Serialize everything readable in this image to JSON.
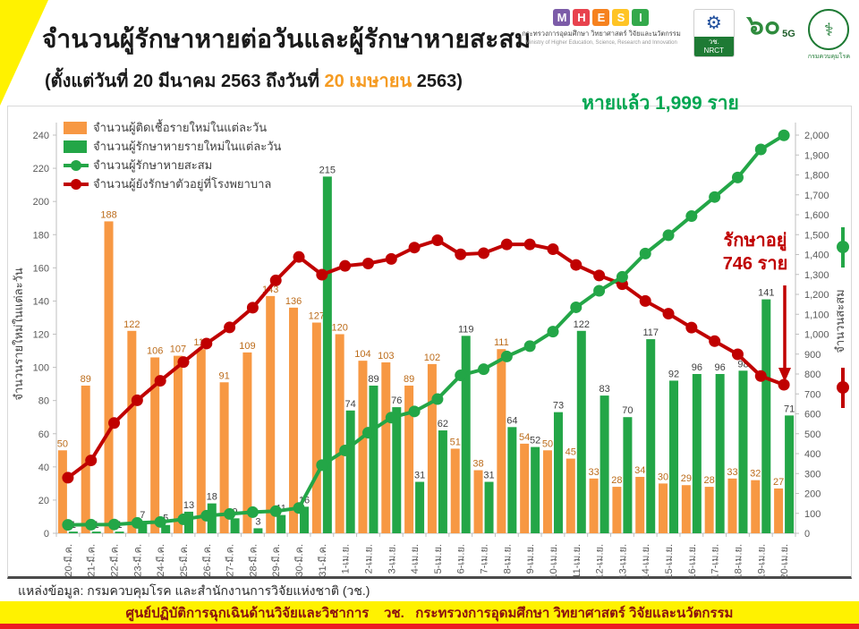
{
  "header": {
    "title": "จำนวนผู้รักษาหายต่อวันและผู้รักษาหายสะสม",
    "subtitle_pre": "(ตั้งแต่วันที่ 20 มีนาคม 2563 ถึงวันที่ ",
    "subtitle_highlight": "20 เมษายน",
    "subtitle_post": " 2563)"
  },
  "logos": {
    "mhesi_letters": [
      "M",
      "H",
      "E",
      "S",
      "I"
    ],
    "mhesi_colors": [
      "#7C5CA8",
      "#E8434E",
      "#F6821F",
      "#FFC425",
      "#34A94B"
    ],
    "mhesi_thai": "กระทรวงการอุดมศึกษา วิทยาศาสตร์ วิจัยและนวัตกรรม",
    "mhesi_eng": "Ministry of Higher Education, Science, Research and Innovation",
    "nrct_emblem_icon": "gear-emblem",
    "nrct_acronym_thai": "วช.",
    "nrct_acronym_en": "NRCT",
    "anniversary_number": "๖๐",
    "anniversary_sub": "5G",
    "ddc_icon": "caduceus",
    "ddc_name": "กรมควบคุมโรค"
  },
  "annotations": {
    "recovered_total": "หายแล้ว 1,999 ราย",
    "in_hospital_line1": "รักษาอยู่",
    "in_hospital_line2": "746 ราย"
  },
  "chart_data": {
    "type": "bar",
    "subtype": "combo-bar-line-dual-axis",
    "title": "จำนวนผู้รักษาหายต่อวันและผู้รักษาหายสะสม",
    "categories": [
      "20-มี.ค.",
      "21-มี.ค.",
      "22-มี.ค.",
      "23-มี.ค.",
      "24-มี.ค.",
      "25-มี.ค.",
      "26-มี.ค.",
      "27-มี.ค.",
      "28-มี.ค.",
      "29-มี.ค.",
      "30-มี.ค.",
      "31-มี.ค.",
      "1-เม.ย.",
      "2-เม.ย.",
      "3-เม.ย.",
      "4-เม.ย.",
      "5-เม.ย.",
      "6-เม.ย.",
      "7-เม.ย.",
      "8-เม.ย.",
      "9-เม.ย.",
      "10-เม.ย.",
      "11-เม.ย.",
      "12-เม.ย.",
      "13-เม.ย.",
      "14-เม.ย.",
      "15-เม.ย.",
      "16-เม.ย.",
      "17-เม.ย.",
      "18-เม.ย.",
      "19-เม.ย.",
      "20-เม.ย."
    ],
    "series": [
      {
        "name": "จำนวนผู้ติดเชื้อรายใหม่ในแต่ละวัน",
        "kind": "bar",
        "axis": "left",
        "color": "#F79843",
        "label_color": "#BC6C1B",
        "values": [
          50,
          89,
          188,
          122,
          106,
          107,
          111,
          91,
          109,
          143,
          136,
          127,
          120,
          104,
          103,
          89,
          102,
          51,
          38,
          111,
          54,
          50,
          45,
          33,
          28,
          34,
          30,
          29,
          28,
          33,
          32,
          27
        ]
      },
      {
        "name": "จำนวนผู้รักษาหายรายใหม่ในแต่ละวัน",
        "kind": "bar",
        "axis": "left",
        "color": "#23A647",
        "label_color": "#3F3F3F",
        "values": [
          1,
          1,
          1,
          7,
          5,
          13,
          18,
          9,
          3,
          11,
          16,
          215,
          74,
          89,
          76,
          31,
          62,
          119,
          31,
          64,
          52,
          73,
          122,
          83,
          70,
          117,
          92,
          96,
          96,
          98,
          141,
          71
        ]
      },
      {
        "name": "จำนวนผู้รักษาหายสะสม",
        "kind": "line",
        "axis": "right",
        "color": "#23A647",
        "values": [
          42,
          43,
          44,
          52,
          57,
          70,
          88,
          97,
          106,
          111,
          127,
          342,
          416,
          505,
          581,
          612,
          674,
          793,
          824,
          888,
          940,
          1013,
          1135,
          1218,
          1288,
          1405,
          1497,
          1593,
          1689,
          1787,
          1928,
          1999
        ]
      },
      {
        "name": "จำนวนผู้ยังรักษาตัวอยู่ที่โรงพยาบาล",
        "kind": "line",
        "axis": "right",
        "color": "#C00000",
        "values": [
          279,
          366,
          554,
          668,
          766,
          860,
          953,
          1034,
          1133,
          1270,
          1388,
          1299,
          1343,
          1355,
          1378,
          1435,
          1472,
          1401,
          1407,
          1451,
          1451,
          1427,
          1348,
          1295,
          1251,
          1167,
          1103,
          1033,
          965,
          899,
          790,
          746
        ]
      }
    ],
    "left_axis": {
      "label": "จำนวนรายใหม่ในแต่ละวัน",
      "min": 0,
      "max": 240,
      "step": 20
    },
    "right_axis": {
      "label": "จำนวนสะสม",
      "min": 0,
      "max": 2000,
      "step": 100
    },
    "legend_position": "top-left",
    "grid": false
  },
  "source": {
    "text": "แหล่งข้อมูล: กรมควบคุมโรค และสำนักงานการวิจัยแห่งชาติ (วช.)"
  },
  "footer": {
    "text": "ศูนย์ปฏิบัติการฉุกเฉินด้านวิจัยและวิชาการ    วช.   กระทรวงการอุดมศึกษา วิทยาศาสตร์ วิจัยและนวัตกรรม"
  },
  "colors": {
    "accent_yellow": "#FFF200",
    "band_red": "#EC1C24",
    "bar_new_cases": "#F79843",
    "bar_recovered": "#23A647",
    "line_cumulative": "#23A647",
    "line_hospital": "#C00000",
    "annotation_green": "#00A651",
    "annotation_red": "#C00000",
    "axis_text": "#595959"
  }
}
